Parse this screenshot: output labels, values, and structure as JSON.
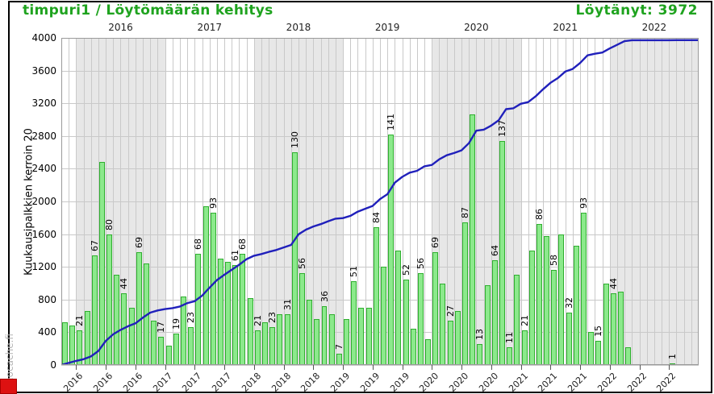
{
  "header": {
    "title": "timpuri1 / Löytömäärän kehitys",
    "found_label": "Löytänyt: 3972",
    "accent_color": "#1FA31F"
  },
  "watermark": "Geocache.fi",
  "chart_data": {
    "type": "bar",
    "title": "timpuri1 / Löytömäärän kehitys",
    "subtitle": "Löytänyt: 3972",
    "total_found": 3972,
    "ylabel": "Kuukausipalkkien kerroin 20",
    "ylim": [
      0,
      4000
    ],
    "y_ticks": [
      0,
      400,
      800,
      1200,
      1600,
      2000,
      2400,
      2800,
      3200,
      3600,
      4000
    ],
    "bar_value_scale": 20,
    "grid": true,
    "legend_position": "none",
    "top_year_labels": [
      "2016",
      "2017",
      "2018",
      "2019",
      "2020",
      "2021",
      "2022"
    ],
    "year_band_shaded": [
      "2016",
      "2018",
      "2020",
      "2022"
    ],
    "months": [
      "2015-11",
      "2015-12",
      "2016-01",
      "2016-02",
      "2016-03",
      "2016-04",
      "2016-05",
      "2016-06",
      "2016-07",
      "2016-08",
      "2016-09",
      "2016-10",
      "2016-11",
      "2016-12",
      "2017-01",
      "2017-02",
      "2017-03",
      "2017-04",
      "2017-05",
      "2017-06",
      "2017-07",
      "2017-08",
      "2017-09",
      "2017-10",
      "2017-11",
      "2017-12",
      "2018-01",
      "2018-02",
      "2018-03",
      "2018-04",
      "2018-05",
      "2018-06",
      "2018-07",
      "2018-08",
      "2018-09",
      "2018-10",
      "2018-11",
      "2018-12",
      "2019-01",
      "2019-02",
      "2019-03",
      "2019-04",
      "2019-05",
      "2019-06",
      "2019-07",
      "2019-08",
      "2019-09",
      "2019-10",
      "2019-11",
      "2019-12",
      "2020-01",
      "2020-02",
      "2020-03",
      "2020-04",
      "2020-05",
      "2020-06",
      "2020-07",
      "2020-08",
      "2020-09",
      "2020-10",
      "2020-11",
      "2020-12",
      "2021-01",
      "2021-02",
      "2021-03",
      "2021-04",
      "2021-05",
      "2021-06",
      "2021-07",
      "2021-08",
      "2021-09",
      "2021-10",
      "2021-11",
      "2021-12",
      "2022-01",
      "2022-02",
      "2022-03",
      "2022-04",
      "2022-05",
      "2022-06",
      "2022-07",
      "2022-08",
      "2022-09",
      "2022-10",
      "2022-11"
    ],
    "finds_per_month": [
      26,
      24,
      21,
      33,
      67,
      124,
      80,
      55,
      44,
      35,
      69,
      62,
      27,
      17,
      12,
      19,
      42,
      23,
      68,
      97,
      93,
      65,
      63,
      61,
      68,
      41,
      21,
      26,
      23,
      31,
      31,
      130,
      56,
      40,
      28,
      36,
      31,
      7,
      28,
      51,
      35,
      35,
      84,
      60,
      141,
      70,
      52,
      22,
      56,
      16,
      69,
      50,
      27,
      33,
      87,
      153,
      13,
      49,
      64,
      137,
      11,
      55,
      21,
      70,
      86,
      79,
      58,
      80,
      32,
      73,
      93,
      20,
      15,
      50,
      44,
      45,
      11,
      0,
      0,
      0,
      0,
      0,
      1,
      0,
      0
    ],
    "bar_labels": [
      null,
      null,
      21,
      null,
      67,
      null,
      80,
      null,
      44,
      null,
      69,
      null,
      null,
      17,
      null,
      19,
      null,
      23,
      68,
      null,
      93,
      null,
      null,
      61,
      68,
      null,
      21,
      null,
      23,
      null,
      31,
      130,
      56,
      null,
      null,
      36,
      null,
      7,
      null,
      51,
      null,
      null,
      84,
      null,
      141,
      null,
      52,
      null,
      56,
      null,
      69,
      null,
      27,
      null,
      87,
      null,
      13,
      null,
      64,
      137,
      11,
      null,
      21,
      null,
      86,
      null,
      58,
      null,
      32,
      null,
      93,
      null,
      15,
      null,
      44,
      null,
      null,
      null,
      null,
      null,
      null,
      null,
      1,
      null,
      null
    ],
    "x_tick_month_indices": [
      2,
      6,
      10,
      14,
      18,
      22,
      26,
      30,
      34,
      38,
      42,
      46,
      50,
      54,
      58,
      62,
      66,
      70,
      74,
      78,
      82
    ],
    "x_tick_labels": [
      "2016",
      "2016",
      "2016",
      "2017",
      "2017",
      "2017",
      "2018",
      "2018",
      "2018",
      "2019",
      "2019",
      "2019",
      "2020",
      "2020",
      "2020",
      "2021",
      "2021",
      "2021",
      "2022",
      "2022",
      "2022"
    ],
    "series": [
      {
        "name": "monthly-finds-bars",
        "color_fill": "#8CE98C",
        "color_border": "#2FAF2F"
      },
      {
        "name": "cumulative-finds-line",
        "color": "#2020BB",
        "final_value": 3972
      }
    ],
    "colors": {
      "band_shaded": "#e7e7e7",
      "band_plain": "#ffffff",
      "gridline": "#c9c9c9",
      "frame": "#000000",
      "title_green": "#1FA31F"
    }
  }
}
